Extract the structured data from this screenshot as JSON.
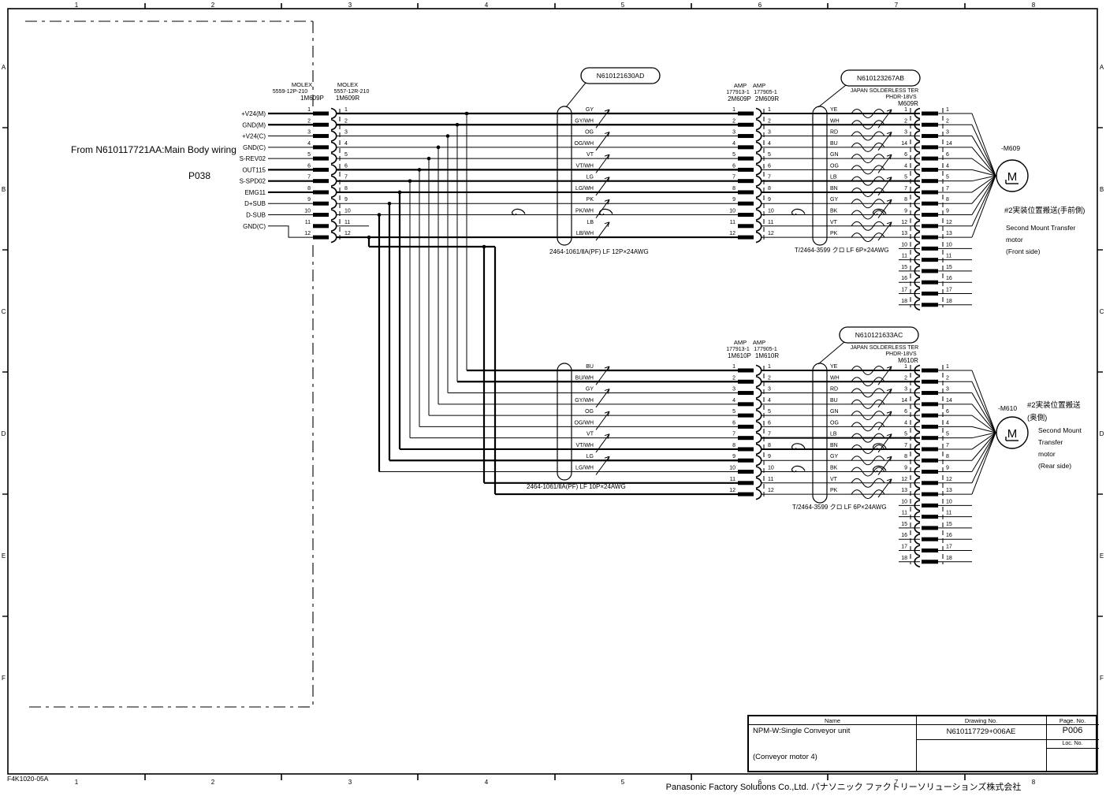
{
  "sheet": {
    "code": "F4K1020-05A",
    "footer": "Panasonic Factory Solutions Co.,Ltd. パナソニック ファクトリーソリューションズ株式会社",
    "grid_cols": [
      "1",
      "2",
      "3",
      "4",
      "5",
      "6",
      "7",
      "8"
    ],
    "grid_rows": [
      "A",
      "B",
      "C",
      "D",
      "E",
      "F"
    ]
  },
  "title_block": {
    "name_label": "Name",
    "name_line1": "NPM-W:Single Conveyor unit",
    "name_line2": "(Conveyor motor 4)",
    "drawing_label": "Drawing No.",
    "drawing_no": "N610117729+006AE",
    "page_label": "Page. No.",
    "page_no": "P006",
    "loc_label": "Loc. No."
  },
  "source_note": {
    "line1": "From  N610117721AA:Main Body wiring",
    "line2": "P038"
  },
  "blocks": [
    {
      "id": "M609",
      "signals": [
        "+V24(M)",
        "GND(M)",
        "+V24(C)",
        "GND(C)",
        "S-REV02",
        "OUT115",
        "S-SPD02",
        "EMG11",
        "D+SUB",
        "D-SUB",
        "GND(C)"
      ],
      "left_connector": {
        "maker1": "MOLEX",
        "part1": "5559-12P-210",
        "name1": "1M609P",
        "maker2": "MOLEX",
        "part2": "5557-12R-210",
        "name2": "1M609R",
        "pins": [
          "1",
          "2",
          "3",
          "4",
          "5",
          "6",
          "7",
          "8",
          "9",
          "10",
          "11",
          "12"
        ]
      },
      "cable_left": {
        "ref": "N610121630AD",
        "spec": "2464-1061/ⅡA(PF) LF 12P×24AWG",
        "colors": [
          "GY",
          "GY/WH",
          "OG",
          "OG/WH",
          "VT",
          "VT/WH",
          "LG",
          "LG/WH",
          "PK",
          "PK/WH",
          "LB",
          "LB/WH"
        ]
      },
      "mid_connector": {
        "maker": "AMP",
        "part1": "177913-1",
        "name1": "2M609P",
        "part2": "177905-1",
        "name2": "2M609R",
        "pins": [
          "1",
          "2",
          "3",
          "4",
          "5",
          "6",
          "7",
          "8",
          "9",
          "10",
          "11",
          "12"
        ]
      },
      "cable_right": {
        "ref": "N610123267AB",
        "maker": "JAPAN SOLDERLESS TER",
        "part": "PHDR-18VS",
        "name": "M609R",
        "spec": "T/2464-3599 クロ LF 6P×24AWG",
        "colors": [
          "YE",
          "WH",
          "RD",
          "BU",
          "GN",
          "OG",
          "LB",
          "BN",
          "GY",
          "BK",
          "VT",
          "PK"
        ]
      },
      "right_pins": [
        "1",
        "2",
        "3",
        "14",
        "6",
        "4",
        "5",
        "7",
        "8",
        "9",
        "12",
        "13"
      ],
      "extra_pins": [
        "10",
        "11",
        "15",
        "16",
        "17",
        "18"
      ],
      "motor": {
        "ref": "-M609",
        "jp1": "#2実装位置搬送(手前側)",
        "jp2": "",
        "en": [
          "Second Mount Transfer",
          "motor",
          "(Front side)"
        ]
      }
    },
    {
      "id": "M610",
      "cable_left": {
        "spec": "2464-1061/ⅡA(PF) LF 10P×24AWG",
        "colors": [
          "BU",
          "BU/WH",
          "GY",
          "GY/WH",
          "OG",
          "OG/WH",
          "VT",
          "VT/WH",
          "LG",
          "LG/WH"
        ]
      },
      "mid_connector": {
        "maker": "AMP",
        "part1": "177913-1",
        "name1": "1M610P",
        "part2": "177905-1",
        "name2": "1M610R",
        "pins": [
          "1",
          "2",
          "3",
          "4",
          "5",
          "6",
          "7",
          "8",
          "9",
          "10",
          "11",
          "12"
        ]
      },
      "cable_right": {
        "ref": "N610121633AC",
        "maker": "JAPAN SOLDERLESS TER",
        "part": "PHDR-18VS",
        "name": "M610R",
        "spec": "T/2464-3599 クロ LF 6P×24AWG",
        "colors": [
          "YE",
          "WH",
          "RD",
          "BU",
          "GN",
          "OG",
          "LB",
          "BN",
          "GY",
          "BK",
          "VT",
          "PK"
        ]
      },
      "right_pins": [
        "1",
        "2",
        "3",
        "14",
        "6",
        "4",
        "5",
        "7",
        "8",
        "9",
        "12",
        "13"
      ],
      "extra_pins": [
        "10",
        "11",
        "15",
        "16",
        "17",
        "18"
      ],
      "motor": {
        "ref": "-M610",
        "jp1": "#2実装位置搬送",
        "jp2": "(奥側)",
        "en": [
          "Second Mount",
          "Transfer",
          "motor",
          "(Rear side)"
        ]
      }
    }
  ]
}
